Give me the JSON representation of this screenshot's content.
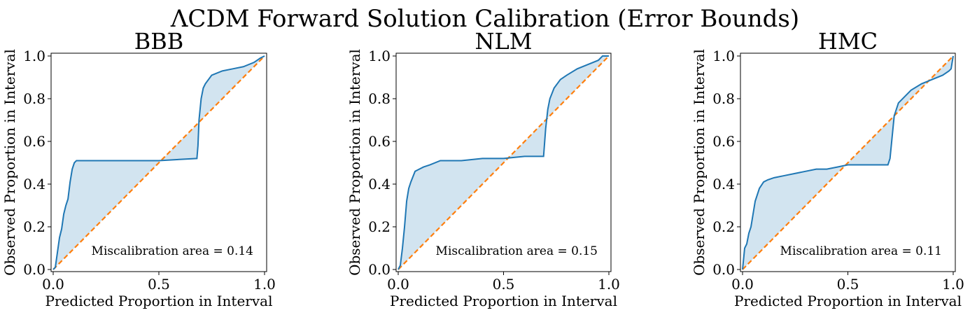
{
  "suptitle": "ΛCDM Forward Solution Calibration (Error Bounds)",
  "chart_data": [
    {
      "type": "line",
      "title": "BBB",
      "xlabel": "Predicted Proportion in Interval",
      "ylabel": "Observed Proportion in Interval",
      "xlim": [
        0,
        1
      ],
      "ylim": [
        0,
        1
      ],
      "xticks": [
        "0.0",
        "0.5",
        "1.0"
      ],
      "yticks": [
        "0.0",
        "0.2",
        "0.4",
        "0.6",
        "0.8",
        "1.0"
      ],
      "annotation": "Miscalibration area = 0.14",
      "legend": "none",
      "grid": false,
      "colors": {
        "curve": "#1f77b4",
        "ideal": "#ff7f0e",
        "fill": "#1f77b4"
      },
      "series": [
        {
          "style": "solid",
          "x": [
            0,
            0.01,
            0.02,
            0.03,
            0.04,
            0.05,
            0.06,
            0.07,
            0.08,
            0.09,
            0.1,
            0.11,
            0.12,
            0.15,
            0.2,
            0.5,
            0.68,
            0.685,
            0.69,
            0.7,
            0.71,
            0.72,
            0.75,
            0.8,
            0.85,
            0.9,
            0.95,
            0.98,
            1.0
          ],
          "y": [
            0,
            0.01,
            0.08,
            0.15,
            0.19,
            0.26,
            0.3,
            0.33,
            0.41,
            0.47,
            0.5,
            0.51,
            0.51,
            0.51,
            0.51,
            0.51,
            0.52,
            0.58,
            0.7,
            0.8,
            0.85,
            0.87,
            0.91,
            0.93,
            0.94,
            0.95,
            0.97,
            0.99,
            1.0
          ]
        },
        {
          "style": "dashed",
          "x": [
            0,
            1
          ],
          "y": [
            0,
            1
          ]
        }
      ]
    },
    {
      "type": "line",
      "title": "NLM",
      "xlabel": "Predicted Proportion in Interval",
      "ylabel": "Observed Proportion in Interval",
      "xlim": [
        0,
        1
      ],
      "ylim": [
        0,
        1
      ],
      "xticks": [
        "0.0",
        "0.5",
        "1.0"
      ],
      "yticks": [
        "0.0",
        "0.2",
        "0.4",
        "0.6",
        "0.8",
        "1.0"
      ],
      "annotation": "Miscalibration area = 0.15",
      "legend": "none",
      "grid": false,
      "colors": {
        "curve": "#1f77b4",
        "ideal": "#ff7f0e",
        "fill": "#1f77b4"
      },
      "series": [
        {
          "style": "solid",
          "x": [
            0,
            0.01,
            0.02,
            0.03,
            0.04,
            0.05,
            0.06,
            0.08,
            0.1,
            0.12,
            0.15,
            0.2,
            0.3,
            0.4,
            0.5,
            0.6,
            0.69,
            0.7,
            0.71,
            0.72,
            0.74,
            0.77,
            0.8,
            0.85,
            0.9,
            0.95,
            0.97,
            1.0
          ],
          "y": [
            0,
            0.02,
            0.1,
            0.2,
            0.32,
            0.38,
            0.41,
            0.46,
            0.47,
            0.48,
            0.49,
            0.51,
            0.51,
            0.52,
            0.52,
            0.53,
            0.53,
            0.66,
            0.75,
            0.8,
            0.85,
            0.89,
            0.91,
            0.94,
            0.96,
            0.98,
            1.0,
            1.0
          ]
        },
        {
          "style": "dashed",
          "x": [
            0,
            1
          ],
          "y": [
            0,
            1
          ]
        }
      ]
    },
    {
      "type": "line",
      "title": "HMC",
      "xlabel": "Predicted Proportion in Interval",
      "ylabel": "Observed Proportion in Interval",
      "xlim": [
        0,
        1
      ],
      "ylim": [
        0,
        1
      ],
      "xticks": [
        "0.0",
        "0.5",
        "1.0"
      ],
      "yticks": [
        "0.0",
        "0.2",
        "0.4",
        "0.6",
        "0.8",
        "1.0"
      ],
      "annotation": "Miscalibration area = 0.11",
      "legend": "none",
      "grid": false,
      "colors": {
        "curve": "#1f77b4",
        "ideal": "#ff7f0e",
        "fill": "#1f77b4"
      },
      "series": [
        {
          "style": "solid",
          "x": [
            0,
            0.01,
            0.02,
            0.03,
            0.04,
            0.05,
            0.06,
            0.08,
            0.1,
            0.12,
            0.15,
            0.2,
            0.25,
            0.3,
            0.35,
            0.4,
            0.45,
            0.5,
            0.6,
            0.69,
            0.7,
            0.71,
            0.72,
            0.74,
            0.77,
            0.8,
            0.85,
            0.9,
            0.95,
            0.98,
            0.99,
            1.0
          ],
          "y": [
            0,
            0.1,
            0.12,
            0.17,
            0.2,
            0.26,
            0.32,
            0.38,
            0.41,
            0.42,
            0.43,
            0.44,
            0.45,
            0.46,
            0.47,
            0.47,
            0.48,
            0.49,
            0.49,
            0.49,
            0.52,
            0.62,
            0.72,
            0.78,
            0.81,
            0.84,
            0.87,
            0.89,
            0.91,
            0.93,
            0.94,
            1.0
          ]
        },
        {
          "style": "dashed",
          "x": [
            0,
            1
          ],
          "y": [
            0,
            1
          ]
        }
      ]
    }
  ]
}
